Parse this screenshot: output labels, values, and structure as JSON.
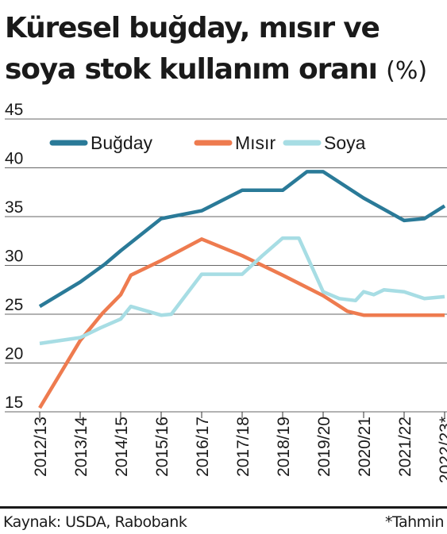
{
  "header": {
    "title_line1": "Küresel buğday, mısır ve",
    "title_line2": "soya stok kullanım oranı",
    "unit": "(%)"
  },
  "footer": {
    "source": "Kaynak: USDA, Rabobank",
    "note": "*Tahmin"
  },
  "colors": {
    "wheat": "#2a7a98",
    "corn": "#ee7b4f",
    "soy": "#a7dde4",
    "grid": "#333333",
    "text": "#1a1a1a"
  },
  "chart_data": {
    "type": "line",
    "title": "Küresel buğday, mısır ve soya stok kullanım oranı (%)",
    "categories": [
      "2012/13",
      "2013/14",
      "2014/15",
      "2015/16",
      "2016/17",
      "2017/18",
      "2018/19",
      "2019/20",
      "2020/21",
      "2021/22",
      "2022/23*"
    ],
    "ylim": [
      15,
      45
    ],
    "yticks": [
      15,
      20,
      25,
      30,
      35,
      40,
      45
    ],
    "grid": true,
    "legend_position": "top-left",
    "series": [
      {
        "name": "Buğday",
        "color": "#2a7a98",
        "points": [
          [
            0,
            25.8
          ],
          [
            1,
            28.3
          ],
          [
            1.6,
            30.1
          ],
          [
            2,
            31.5
          ],
          [
            3,
            34.8
          ],
          [
            4,
            35.6
          ],
          [
            5,
            37.7
          ],
          [
            6,
            37.7
          ],
          [
            6.6,
            39.6
          ],
          [
            7,
            39.6
          ],
          [
            8,
            36.9
          ],
          [
            9,
            34.6
          ],
          [
            9.5,
            34.8
          ],
          [
            10,
            36.1
          ]
        ]
      },
      {
        "name": "Mısır",
        "color": "#ee7b4f",
        "points": [
          [
            0,
            15.4
          ],
          [
            1,
            22.3
          ],
          [
            1.55,
            25.1
          ],
          [
            2,
            27.0
          ],
          [
            2.25,
            29.0
          ],
          [
            3,
            30.5
          ],
          [
            4,
            32.7
          ],
          [
            5,
            31.0
          ],
          [
            6,
            29.0
          ],
          [
            7,
            26.9
          ],
          [
            7.6,
            25.3
          ],
          [
            8,
            24.9
          ],
          [
            9,
            24.9
          ],
          [
            10,
            24.9
          ]
        ]
      },
      {
        "name": "Soya",
        "color": "#a7dde4",
        "points": [
          [
            0,
            22.0
          ],
          [
            1,
            22.6
          ],
          [
            1.5,
            23.6
          ],
          [
            2,
            24.5
          ],
          [
            2.25,
            25.8
          ],
          [
            3,
            24.9
          ],
          [
            3.25,
            25.0
          ],
          [
            4,
            29.1
          ],
          [
            5,
            29.1
          ],
          [
            5.5,
            31.0
          ],
          [
            6,
            32.8
          ],
          [
            6.4,
            32.8
          ],
          [
            7,
            27.3
          ],
          [
            7.4,
            26.6
          ],
          [
            7.8,
            26.4
          ],
          [
            8,
            27.3
          ],
          [
            8.25,
            27.0
          ],
          [
            8.5,
            27.5
          ],
          [
            9,
            27.3
          ],
          [
            9.5,
            26.6
          ],
          [
            10,
            26.8
          ]
        ]
      }
    ]
  }
}
